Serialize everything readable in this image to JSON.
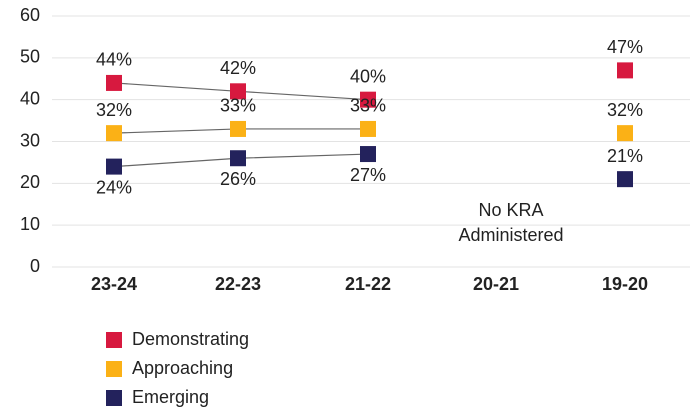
{
  "chart_data": {
    "type": "line",
    "categories": [
      "23-24",
      "22-23",
      "21-22",
      "20-21",
      "19-20"
    ],
    "series": [
      {
        "name": "Demonstrating",
        "color": "#d7193f",
        "values": [
          44,
          42,
          40,
          null,
          47
        ],
        "value_labels": [
          "44%",
          "42%",
          "40%",
          null,
          "47%"
        ]
      },
      {
        "name": "Approaching",
        "color": "#fbb116",
        "values": [
          32,
          33,
          33,
          null,
          32
        ],
        "value_labels": [
          "32%",
          "33%",
          "33%",
          null,
          "32%"
        ]
      },
      {
        "name": "Emerging",
        "color": "#23225c",
        "values": [
          24,
          26,
          27,
          null,
          21
        ],
        "value_labels": [
          "24%",
          "26%",
          "27%",
          null,
          "21%"
        ]
      }
    ],
    "annotation": "No KRA Administered",
    "ylim": [
      0,
      60
    ],
    "yticks": [
      0,
      10,
      20,
      30,
      40,
      50,
      60
    ],
    "grid": true,
    "line_color": "#666666"
  }
}
